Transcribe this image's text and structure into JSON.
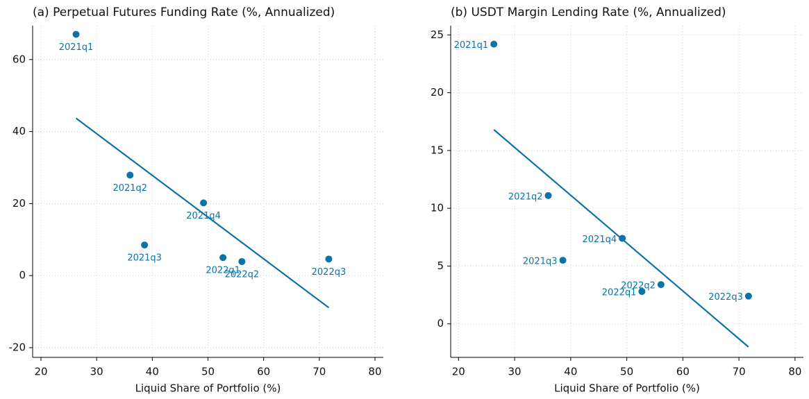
{
  "chart_data": [
    {
      "type": "scatter",
      "title": "(a) Perpetual Futures Funding Rate (%, Annualized)",
      "x_label": "Liquid Share of Portfolio (%)",
      "x": [
        26.3,
        36.0,
        38.6,
        49.2,
        52.7,
        56.1,
        71.7
      ],
      "values": [
        67.0,
        27.9,
        8.5,
        20.2,
        5.0,
        3.9,
        4.6
      ],
      "labels": [
        "2021q1",
        "2021q2",
        "2021q3",
        "2021q4",
        "2022q1",
        "2022q2",
        "2022q3"
      ],
      "label_position": "below",
      "color": "#0a73a8",
      "fit_line": {
        "x": [
          26.3,
          71.7
        ],
        "y": [
          43.7,
          -8.9
        ]
      },
      "xlim": [
        18.5,
        81.5
      ],
      "ylim": [
        -22.7,
        69.4
      ],
      "xticks": [
        20,
        30,
        40,
        50,
        60,
        70,
        80
      ],
      "yticks": [
        -20,
        0,
        20,
        40,
        60
      ],
      "grid": true
    },
    {
      "type": "scatter",
      "title": "(b) USDT Margin Lending Rate (%, Annualized)",
      "x_label": "Liquid Share of Portfolio (%)",
      "x": [
        26.3,
        36.0,
        38.6,
        49.2,
        52.7,
        56.1,
        71.7
      ],
      "values": [
        24.2,
        11.1,
        5.5,
        7.4,
        2.8,
        3.4,
        2.4
      ],
      "labels": [
        "2021q1",
        "2021q2",
        "2021q3",
        "2021q4",
        "2022q1",
        "2022q2",
        "2022q3"
      ],
      "label_position": "left",
      "color": "#0a73a8",
      "fit_line": {
        "x": [
          26.3,
          71.7
        ],
        "y": [
          16.8,
          -2.0
        ]
      },
      "xlim": [
        18.6,
        81.5
      ],
      "ylim": [
        -2.9,
        25.8
      ],
      "xticks": [
        20,
        30,
        40,
        50,
        60,
        70,
        80
      ],
      "yticks": [
        0,
        5,
        10,
        15,
        20,
        25
      ],
      "grid": true
    }
  ]
}
